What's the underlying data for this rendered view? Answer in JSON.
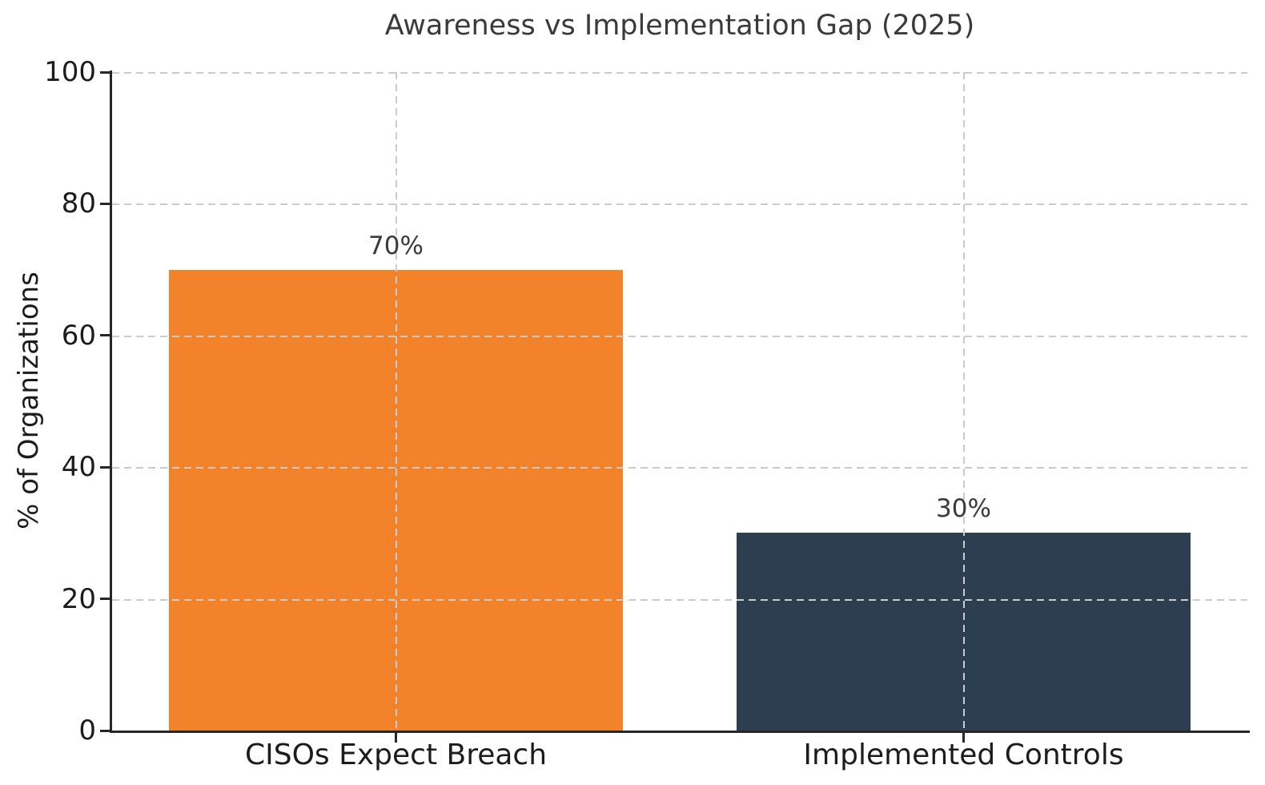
{
  "chart_data": {
    "type": "bar",
    "title": "Awareness vs Implementation Gap (2025)",
    "xlabel": "",
    "ylabel": "% of Organizations",
    "categories": [
      "CISOs Expect Breach",
      "Implemented Controls"
    ],
    "values": [
      70,
      30
    ],
    "value_labels": [
      "70%",
      "30%"
    ],
    "ylim": [
      0,
      100
    ],
    "yticks": [
      0,
      20,
      40,
      60,
      80,
      100
    ],
    "bar_colors": [
      "#f3832b",
      "#2c3e50"
    ],
    "grid": "dashed horizontal lines every 20 units and vertical lines at each bar center, drawn above bars",
    "legend_position": "none"
  },
  "colors": {
    "bar_awareness": "#f3832b",
    "bar_implementation": "#2c3e50",
    "gridline": "#cbcbcb",
    "spine": "#262626",
    "title_text": "#3a3a3a",
    "tick_text": "#1c1c1c",
    "value_label_text": "#3a3a3a",
    "background": "#ffffff"
  }
}
